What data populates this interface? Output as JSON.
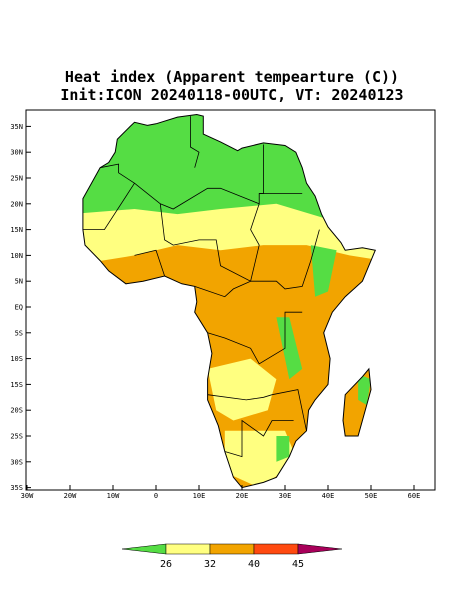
{
  "header": {
    "title": "Heat index (Apparent tempearture (C))",
    "subtitle": "Init:ICON 20240118-00UTC, VT: 20240123"
  },
  "map": {
    "lat_labels": [
      "35N",
      "30N",
      "25N",
      "20N",
      "15N",
      "10N",
      "5N",
      "EQ",
      "5S",
      "10S",
      "15S",
      "20S",
      "25S",
      "30S",
      "35S"
    ],
    "lon_labels": [
      "30W",
      "20W",
      "10W",
      "0",
      "10E",
      "20E",
      "30E",
      "40E",
      "50E",
      "60E"
    ]
  },
  "colorbar": {
    "levels": [
      26,
      32,
      40,
      45
    ],
    "colors": [
      "#55dd44",
      "#ffff80",
      "#f2a400",
      "#ff4a10",
      "#a8005a"
    ]
  }
}
